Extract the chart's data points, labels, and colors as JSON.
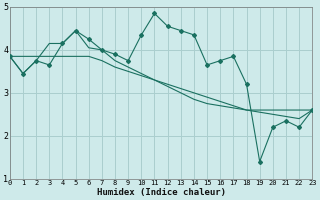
{
  "xlabel": "Humidex (Indice chaleur)",
  "bg_color": "#ceeaea",
  "grid_color": "#aacece",
  "line_color": "#1a7060",
  "x_min": 0,
  "x_max": 23,
  "y_min": 1,
  "y_max": 5,
  "yticks": [
    1,
    2,
    3,
    4,
    5
  ],
  "xticks": [
    0,
    1,
    2,
    3,
    4,
    5,
    6,
    7,
    8,
    9,
    10,
    11,
    12,
    13,
    14,
    15,
    16,
    17,
    18,
    19,
    20,
    21,
    22,
    23
  ],
  "series1_x": [
    0,
    1,
    2,
    3,
    4,
    5,
    6,
    7,
    8,
    9,
    10,
    11,
    12,
    13,
    14,
    15,
    16,
    17,
    18,
    19,
    20,
    21,
    22,
    23
  ],
  "series1_y": [
    3.85,
    3.45,
    3.75,
    3.65,
    4.15,
    4.45,
    4.25,
    4.0,
    3.9,
    3.75,
    4.35,
    4.85,
    4.55,
    4.45,
    4.35,
    3.65,
    3.75,
    3.85,
    3.2,
    1.4,
    2.2,
    2.35,
    2.2,
    2.6
  ],
  "series2_x": [
    0,
    1,
    2,
    3,
    4,
    5,
    6,
    7,
    8,
    9,
    10,
    11,
    12,
    13,
    14,
    15,
    16,
    17,
    18,
    23
  ],
  "series2_y": [
    3.85,
    3.85,
    3.85,
    3.85,
    3.85,
    3.85,
    3.85,
    3.75,
    3.6,
    3.5,
    3.4,
    3.3,
    3.2,
    3.1,
    3.0,
    2.9,
    2.8,
    2.7,
    2.6,
    2.6
  ],
  "series3_x": [
    0,
    1,
    2,
    3,
    4,
    5,
    6,
    7,
    8,
    9,
    10,
    11,
    12,
    13,
    14,
    15,
    16,
    17,
    18,
    19,
    20,
    21,
    22,
    23
  ],
  "series3_y": [
    3.85,
    3.45,
    3.75,
    4.15,
    4.15,
    4.45,
    4.05,
    4.0,
    3.75,
    3.6,
    3.45,
    3.3,
    3.15,
    3.0,
    2.85,
    2.75,
    2.7,
    2.65,
    2.6,
    2.55,
    2.5,
    2.45,
    2.4,
    2.6
  ]
}
